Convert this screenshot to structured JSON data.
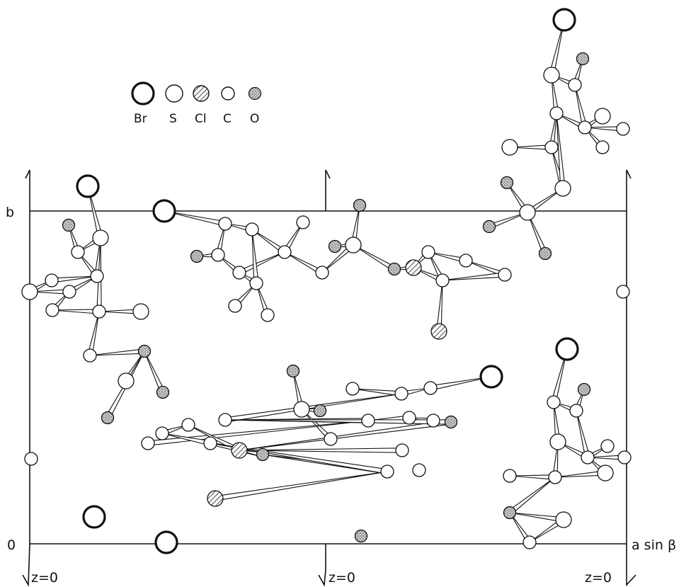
{
  "legend": {
    "items": [
      {
        "symbol": "Br",
        "label": "Br",
        "fill": "none",
        "stroke_weight": "heavy"
      },
      {
        "symbol": "S",
        "label": "S",
        "fill": "none",
        "stroke_weight": "light"
      },
      {
        "symbol": "Cl",
        "label": "Cl",
        "fill": "hatched",
        "stroke_weight": "light"
      },
      {
        "symbol": "C",
        "label": "C",
        "fill": "none",
        "stroke_weight": "light"
      },
      {
        "symbol": "O",
        "label": "O",
        "fill": "stippled",
        "stroke_weight": "light"
      }
    ]
  },
  "axes": {
    "vertical_axis_label": "b",
    "horizontal_axis_label": "a sin β",
    "origin_label": "0"
  },
  "z_markers": [
    "z=0",
    "z=0",
    "z=0"
  ],
  "colors": {
    "ink": "#111111",
    "stipple": "#8c8c8c",
    "hatch": "#555555"
  }
}
